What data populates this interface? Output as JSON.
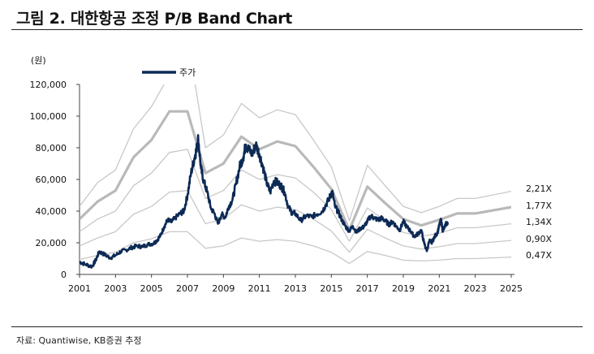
{
  "figure": {
    "title": "그림 2. 대한항공 조정 P/B Band Chart",
    "source": "자료: Quantiwise, KB증권 추정"
  },
  "chart_data": {
    "type": "line",
    "unit_label": "(원)",
    "xlim": [
      2001,
      2025
    ],
    "ylim": [
      0,
      120000
    ],
    "x_ticks": [
      2001,
      2003,
      2005,
      2007,
      2009,
      2011,
      2013,
      2015,
      2017,
      2019,
      2021,
      2023,
      2025
    ],
    "y_ticks": [
      0,
      20000,
      40000,
      60000,
      80000,
      100000,
      120000
    ],
    "legend": {
      "label": "주가",
      "placement": "top-center"
    },
    "colors": {
      "price": "#0d2a55",
      "band_main": "#b9b9b9",
      "band": "#c8c8c8",
      "axis": "#444444"
    },
    "price": {
      "name": "주가",
      "points": [
        [
          2001.0,
          8000
        ],
        [
          2001.3,
          6500
        ],
        [
          2001.7,
          5000
        ],
        [
          2001.9,
          9000
        ],
        [
          2002.1,
          14500
        ],
        [
          2002.4,
          12500
        ],
        [
          2002.7,
          10500
        ],
        [
          2003.0,
          12000
        ],
        [
          2003.3,
          14500
        ],
        [
          2003.6,
          15500
        ],
        [
          2003.9,
          17000
        ],
        [
          2004.2,
          18000
        ],
        [
          2004.5,
          17500
        ],
        [
          2004.8,
          19000
        ],
        [
          2005.1,
          19500
        ],
        [
          2005.3,
          21500
        ],
        [
          2005.5,
          24500
        ],
        [
          2005.7,
          30000
        ],
        [
          2005.9,
          34500
        ],
        [
          2006.1,
          33000
        ],
        [
          2006.3,
          35500
        ],
        [
          2006.6,
          38500
        ],
        [
          2006.8,
          40000
        ],
        [
          2007.0,
          50000
        ],
        [
          2007.2,
          64000
        ],
        [
          2007.4,
          74000
        ],
        [
          2007.5,
          79000
        ],
        [
          2007.6,
          86000
        ],
        [
          2007.75,
          67000
        ],
        [
          2007.9,
          59000
        ],
        [
          2008.1,
          52000
        ],
        [
          2008.3,
          42000
        ],
        [
          2008.5,
          38500
        ],
        [
          2008.7,
          32000
        ],
        [
          2008.9,
          38000
        ],
        [
          2009.1,
          36000
        ],
        [
          2009.3,
          43000
        ],
        [
          2009.5,
          47000
        ],
        [
          2009.7,
          57000
        ],
        [
          2009.9,
          68000
        ],
        [
          2010.1,
          74000
        ],
        [
          2010.25,
          82000
        ],
        [
          2010.4,
          79000
        ],
        [
          2010.6,
          76000
        ],
        [
          2010.8,
          82000
        ],
        [
          2011.0,
          76000
        ],
        [
          2011.2,
          68000
        ],
        [
          2011.4,
          58000
        ],
        [
          2011.6,
          52000
        ],
        [
          2011.8,
          59000
        ],
        [
          2012.0,
          58000
        ],
        [
          2012.2,
          56000
        ],
        [
          2012.4,
          52000
        ],
        [
          2012.6,
          43000
        ],
        [
          2012.8,
          39000
        ],
        [
          2013.0,
          38500
        ],
        [
          2013.3,
          34000
        ],
        [
          2013.6,
          37000
        ],
        [
          2013.9,
          36500
        ],
        [
          2014.2,
          38000
        ],
        [
          2014.5,
          40000
        ],
        [
          2014.7,
          44000
        ],
        [
          2014.9,
          48500
        ],
        [
          2015.05,
          52500
        ],
        [
          2015.2,
          43000
        ],
        [
          2015.4,
          39000
        ],
        [
          2015.6,
          34000
        ],
        [
          2015.8,
          30000
        ],
        [
          2016.0,
          27500
        ],
        [
          2016.2,
          30500
        ],
        [
          2016.4,
          26500
        ],
        [
          2016.6,
          29000
        ],
        [
          2016.8,
          30000
        ],
        [
          2017.0,
          33500
        ],
        [
          2017.2,
          37000
        ],
        [
          2017.4,
          35500
        ],
        [
          2017.6,
          34500
        ],
        [
          2017.8,
          35500
        ],
        [
          2018.0,
          34000
        ],
        [
          2018.2,
          31500
        ],
        [
          2018.4,
          33500
        ],
        [
          2018.6,
          30500
        ],
        [
          2018.8,
          28000
        ],
        [
          2019.0,
          33500
        ],
        [
          2019.2,
          30000
        ],
        [
          2019.4,
          27500
        ],
        [
          2019.6,
          24000
        ],
        [
          2019.8,
          25500
        ],
        [
          2020.0,
          28000
        ],
        [
          2020.15,
          20000
        ],
        [
          2020.3,
          15000
        ],
        [
          2020.45,
          21000
        ],
        [
          2020.6,
          20500
        ],
        [
          2020.75,
          24000
        ],
        [
          2020.9,
          26500
        ],
        [
          2021.0,
          31000
        ],
        [
          2021.1,
          34500
        ],
        [
          2021.2,
          27000
        ],
        [
          2021.35,
          31500
        ],
        [
          2021.5,
          33000
        ]
      ]
    },
    "bands": [
      {
        "name": "2.21X",
        "points": [
          [
            2001.0,
            43000
          ],
          [
            2002.0,
            58000
          ],
          [
            2003.0,
            66000
          ],
          [
            2004.0,
            92000
          ],
          [
            2005.0,
            106000
          ],
          [
            2006.0,
            126000
          ],
          [
            2007.0,
            150000
          ],
          [
            2008.0,
            80000
          ],
          [
            2009.0,
            88000
          ],
          [
            2010.0,
            108000
          ],
          [
            2011.0,
            99000
          ],
          [
            2012.0,
            104000
          ],
          [
            2013.0,
            101000
          ],
          [
            2014.0,
            85000
          ],
          [
            2015.0,
            68000
          ],
          [
            2016.0,
            34000
          ],
          [
            2017.0,
            69000
          ],
          [
            2018.0,
            56000
          ],
          [
            2019.0,
            43000
          ],
          [
            2020.0,
            39000
          ],
          [
            2021.0,
            43000
          ],
          [
            2022.0,
            48000
          ],
          [
            2023.0,
            48000
          ],
          [
            2025.0,
            52500
          ]
        ]
      },
      {
        "name": "1.77X",
        "main": true,
        "points": [
          [
            2001.0,
            35000
          ],
          [
            2002.0,
            46000
          ],
          [
            2003.0,
            53000
          ],
          [
            2004.0,
            74000
          ],
          [
            2005.0,
            85000
          ],
          [
            2006.0,
            103000
          ],
          [
            2007.0,
            103000
          ],
          [
            2008.0,
            64000
          ],
          [
            2009.0,
            70000
          ],
          [
            2010.0,
            87000
          ],
          [
            2011.0,
            79000
          ],
          [
            2012.0,
            84000
          ],
          [
            2013.0,
            81000
          ],
          [
            2014.0,
            68000
          ],
          [
            2015.0,
            54000
          ],
          [
            2016.0,
            28000
          ],
          [
            2017.0,
            55500
          ],
          [
            2018.0,
            45000
          ],
          [
            2019.0,
            35000
          ],
          [
            2020.0,
            31000
          ],
          [
            2021.0,
            34500
          ],
          [
            2022.0,
            38500
          ],
          [
            2023.0,
            38500
          ],
          [
            2025.0,
            42500
          ]
        ]
      },
      {
        "name": "1.34X",
        "points": [
          [
            2001.0,
            27000
          ],
          [
            2002.0,
            35000
          ],
          [
            2003.0,
            40000
          ],
          [
            2004.0,
            56000
          ],
          [
            2005.0,
            64000
          ],
          [
            2006.0,
            77000
          ],
          [
            2007.0,
            79000
          ],
          [
            2008.0,
            48000
          ],
          [
            2009.0,
            53000
          ],
          [
            2010.0,
            66000
          ],
          [
            2011.0,
            60000
          ],
          [
            2012.0,
            63000
          ],
          [
            2013.0,
            61000
          ],
          [
            2014.0,
            52000
          ],
          [
            2015.0,
            41000
          ],
          [
            2016.0,
            21000
          ],
          [
            2017.0,
            42000
          ],
          [
            2018.0,
            34000
          ],
          [
            2019.0,
            26500
          ],
          [
            2020.0,
            24000
          ],
          [
            2021.0,
            26000
          ],
          [
            2022.0,
            29500
          ],
          [
            2023.0,
            29500
          ],
          [
            2025.0,
            32000
          ]
        ]
      },
      {
        "name": "0.90X",
        "points": [
          [
            2001.0,
            18000
          ],
          [
            2002.0,
            23000
          ],
          [
            2003.0,
            27000
          ],
          [
            2004.0,
            38000
          ],
          [
            2005.0,
            43000
          ],
          [
            2006.0,
            52000
          ],
          [
            2007.0,
            53000
          ],
          [
            2008.0,
            32000
          ],
          [
            2009.0,
            35000
          ],
          [
            2010.0,
            44000
          ],
          [
            2011.0,
            40000
          ],
          [
            2012.0,
            42500
          ],
          [
            2013.0,
            41000
          ],
          [
            2014.0,
            35000
          ],
          [
            2015.0,
            27500
          ],
          [
            2016.0,
            14000
          ],
          [
            2017.0,
            28500
          ],
          [
            2018.0,
            23000
          ],
          [
            2019.0,
            18000
          ],
          [
            2020.0,
            16000
          ],
          [
            2021.0,
            17500
          ],
          [
            2022.0,
            19500
          ],
          [
            2023.0,
            19500
          ],
          [
            2025.0,
            21500
          ]
        ]
      },
      {
        "name": "0.47X",
        "points": [
          [
            2001.0,
            9500
          ],
          [
            2002.0,
            12000
          ],
          [
            2003.0,
            14000
          ],
          [
            2004.0,
            20000
          ],
          [
            2005.0,
            22500
          ],
          [
            2006.0,
            27000
          ],
          [
            2007.0,
            27000
          ],
          [
            2008.0,
            16500
          ],
          [
            2009.0,
            18000
          ],
          [
            2010.0,
            23000
          ],
          [
            2011.0,
            21000
          ],
          [
            2012.0,
            22000
          ],
          [
            2013.0,
            21000
          ],
          [
            2014.0,
            18000
          ],
          [
            2015.0,
            14000
          ],
          [
            2016.0,
            7000
          ],
          [
            2017.0,
            14500
          ],
          [
            2018.0,
            12000
          ],
          [
            2019.0,
            9000
          ],
          [
            2020.0,
            8500
          ],
          [
            2021.0,
            9000
          ],
          [
            2022.0,
            10000
          ],
          [
            2023.0,
            10000
          ],
          [
            2025.0,
            11000
          ]
        ]
      }
    ],
    "band_labels": [
      "2,21X",
      "1,77X",
      "1,34X",
      "0,90X",
      "0,47X"
    ]
  }
}
